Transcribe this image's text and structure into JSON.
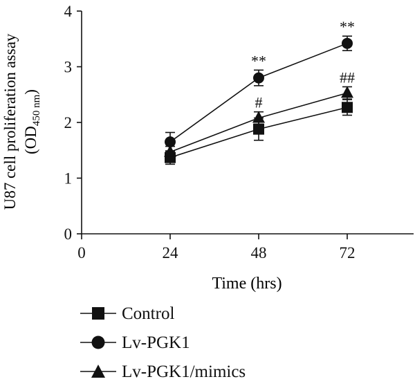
{
  "chart_data": {
    "type": "line",
    "title": "",
    "xlabel": "Time (hrs)",
    "ylabel_line1": "U87 cell proliferation assay",
    "ylabel_line2_prefix": "(OD",
    "ylabel_line2_sub": "450 nm",
    "ylabel_line2_suffix": ")",
    "x": [
      24,
      48,
      72
    ],
    "xticks": [
      "0",
      "24",
      "48",
      "72"
    ],
    "xlim": [
      0,
      90
    ],
    "yticks": [
      "0",
      "1",
      "2",
      "3",
      "4"
    ],
    "ylim": [
      0,
      4
    ],
    "grid": false,
    "legend_position": "bottom-left",
    "series": [
      {
        "name": "Control",
        "marker": "square",
        "values": [
          1.37,
          1.88,
          2.27
        ],
        "errors": [
          0.12,
          0.2,
          0.14
        ],
        "annotations": [
          "",
          "",
          ""
        ]
      },
      {
        "name": "Lv-PGK1",
        "marker": "circle",
        "values": [
          1.65,
          2.8,
          3.42
        ],
        "errors": [
          0.17,
          0.14,
          0.13
        ],
        "annotations": [
          "",
          "**",
          "**"
        ]
      },
      {
        "name": "Lv-PGK1/mimics",
        "marker": "triangle",
        "values": [
          1.47,
          2.08,
          2.53
        ],
        "errors": [
          0.1,
          0.11,
          0.11
        ],
        "annotations": [
          "",
          "#",
          "##"
        ]
      }
    ],
    "color": "#111111"
  }
}
